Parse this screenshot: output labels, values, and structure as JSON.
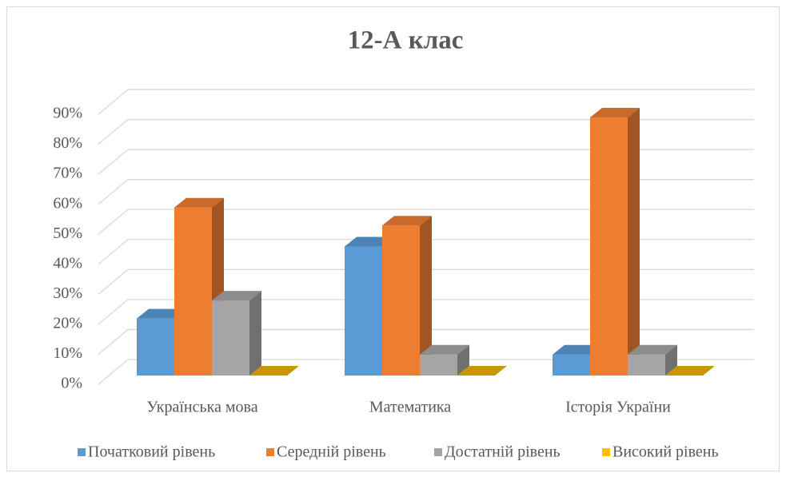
{
  "chart_data": {
    "type": "bar3d",
    "title": "12-А клас",
    "categories": [
      "Українська мова",
      "Математика",
      "Історія України"
    ],
    "series": [
      {
        "name": "Початковий рівень",
        "color": "#5b9bd5",
        "values": [
          19,
          43,
          7
        ]
      },
      {
        "name": "Середній рівень",
        "color": "#ed7d31",
        "values": [
          56,
          50,
          86
        ]
      },
      {
        "name": "Достатній рівень",
        "color": "#a5a5a5",
        "values": [
          25,
          7,
          7
        ]
      },
      {
        "name": "Високий рівень",
        "color": "#ffc000",
        "values": [
          0,
          0,
          0
        ]
      }
    ],
    "ylim": [
      0,
      90
    ],
    "yticks": [
      {
        "value": 0,
        "label": "0%"
      },
      {
        "value": 10,
        "label": "10%"
      },
      {
        "value": 20,
        "label": "20%"
      },
      {
        "value": 30,
        "label": "30%"
      },
      {
        "value": 40,
        "label": "40%"
      },
      {
        "value": 50,
        "label": "50%"
      },
      {
        "value": 60,
        "label": "60%"
      },
      {
        "value": 70,
        "label": "70%"
      },
      {
        "value": 80,
        "label": "80%"
      },
      {
        "value": 90,
        "label": "90%"
      }
    ],
    "grid": true,
    "legend": "bottom"
  }
}
